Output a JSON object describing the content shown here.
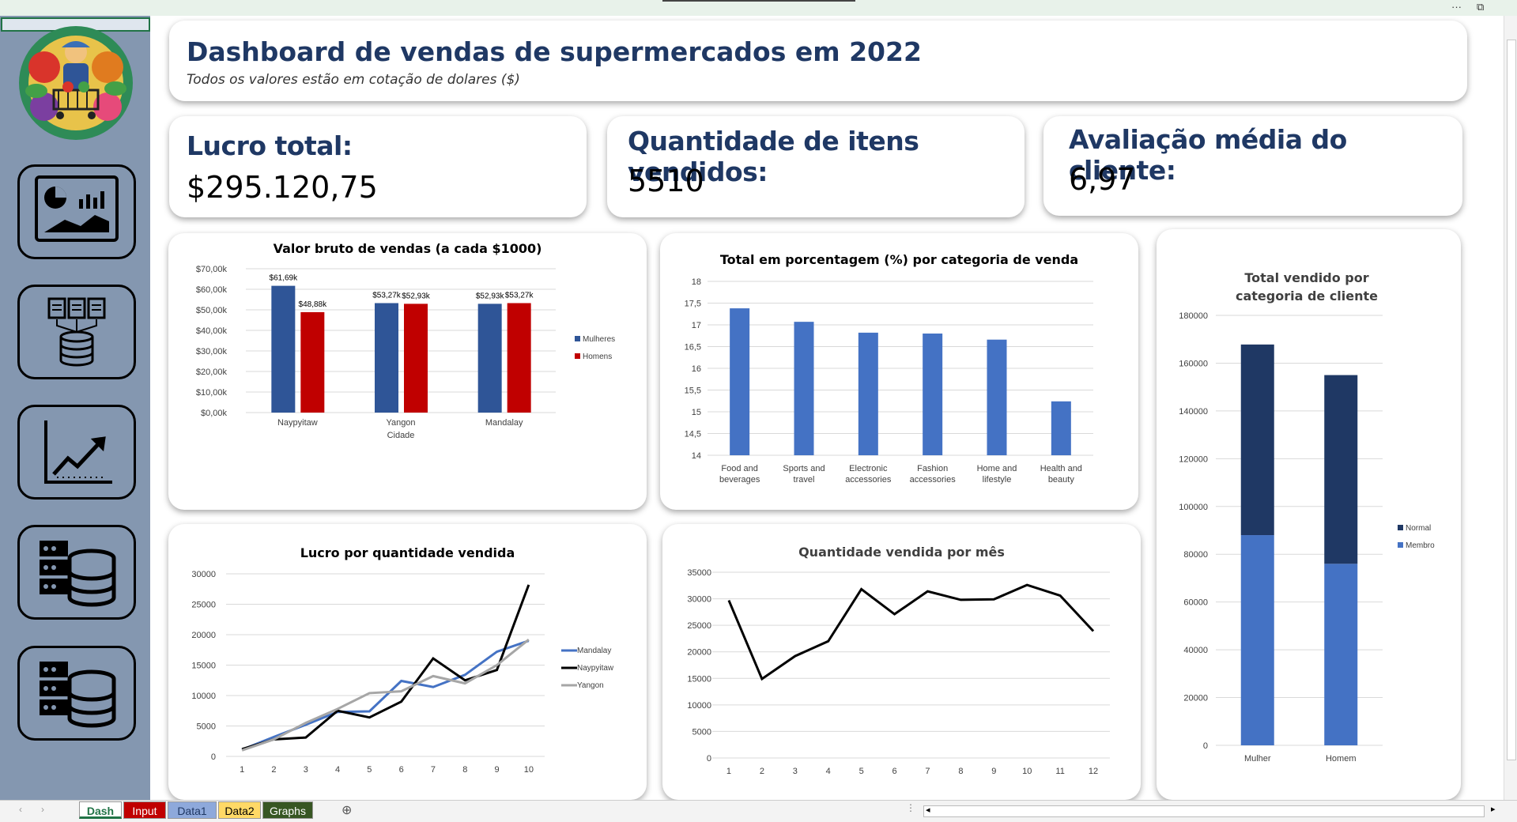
{
  "header": {
    "title": "Dashboard de vendas de supermercados em 2022",
    "subtitle": "Todos os valores estão em cotação de dolares ($)"
  },
  "kpis": {
    "profit": {
      "label": "Lucro total:",
      "value": "$295.120,75"
    },
    "quantity": {
      "label": "Quantidade de itens vendidos:",
      "value": "5510"
    },
    "rating": {
      "label": "Avaliação média do cliente:",
      "value": "6,97"
    }
  },
  "window": {
    "more": "···",
    "restore": "⧉"
  },
  "nav": {
    "icons": [
      "dashboard-icon",
      "data-input-icon",
      "growth-chart-icon",
      "database-icon",
      "database-icon"
    ]
  },
  "tabs": [
    {
      "label": "Dash",
      "color": "#ffffff",
      "text": "#217346"
    },
    {
      "label": "Input",
      "color": "#c00000",
      "text": "#ffffff"
    },
    {
      "label": "Data1",
      "color": "#8ea9db",
      "text": "#1f3864"
    },
    {
      "label": "Data2",
      "color": "#ffd966",
      "text": "#000000"
    },
    {
      "label": "Graphs",
      "color": "#375623",
      "text": "#ffffff"
    }
  ],
  "colors": {
    "navy": "#1f3864",
    "blue": "#2f5597",
    "red": "#c00000",
    "lightblue": "#4472c4"
  },
  "chart_data": [
    {
      "id": "gross",
      "type": "bar",
      "title": "Valor bruto de vendas (a cada $1000)",
      "xlabel": "Cidade",
      "categories": [
        "Naypyitaw",
        "Yangon",
        "Mandalay"
      ],
      "series": [
        {
          "name": "Mulheres",
          "values": [
            61.69,
            53.27,
            52.93
          ],
          "labels": [
            "$61,69k",
            "$53,27k",
            "$52,93k"
          ]
        },
        {
          "name": "Homens",
          "values": [
            48.88,
            52.93,
            53.27
          ],
          "labels": [
            "$48,88k",
            "$52,93k",
            "$53,27k"
          ]
        }
      ],
      "yticks": [
        "$0,00k",
        "$10,00k",
        "$20,00k",
        "$30,00k",
        "$40,00k",
        "$50,00k",
        "$60,00k",
        "$70,00k"
      ],
      "ylim": [
        0,
        70
      ],
      "grid": true,
      "legend": "right"
    },
    {
      "id": "category",
      "type": "bar",
      "title": "Total em porcentagem (%) por categoria de venda",
      "categories": [
        "Food and beverages",
        "Sports and travel",
        "Electronic accessories",
        "Fashion accessories",
        "Home and lifestyle",
        "Health and beauty"
      ],
      "values": [
        17.38,
        17.07,
        16.82,
        16.8,
        16.66,
        15.24
      ],
      "yticks": [
        "14",
        "14,5",
        "15",
        "15,5",
        "16",
        "16,5",
        "17",
        "17,5",
        "18"
      ],
      "ylim": [
        14,
        18
      ],
      "grid": true
    },
    {
      "id": "customer",
      "type": "bar",
      "title": "Total vendido por categoria de cliente",
      "categories": [
        "Mulher",
        "Homem"
      ],
      "series": [
        {
          "name": "Membro",
          "values": [
            88000,
            76000
          ]
        },
        {
          "name": "Normal",
          "values": [
            79800,
            79000
          ]
        }
      ],
      "stacked": true,
      "yticks": [
        "0",
        "20000",
        "40000",
        "60000",
        "80000",
        "100000",
        "120000",
        "140000",
        "160000",
        "180000"
      ],
      "ylim": [
        0,
        180000
      ],
      "grid": true,
      "legend": "right"
    },
    {
      "id": "profitqty",
      "type": "line",
      "title": "Lucro por quantidade vendida",
      "x": [
        "1",
        "2",
        "3",
        "4",
        "5",
        "6",
        "7",
        "8",
        "9",
        "10"
      ],
      "series": [
        {
          "name": "Mandalay",
          "values": [
            1100,
            3200,
            5200,
            7300,
            7400,
            12400,
            11400,
            13400,
            17200,
            19000
          ]
        },
        {
          "name": "Naypyitaw",
          "values": [
            1200,
            2800,
            3100,
            7500,
            6400,
            9000,
            16100,
            12500,
            14200,
            28200
          ]
        },
        {
          "name": "Yangon",
          "values": [
            1000,
            2800,
            5500,
            7800,
            10400,
            10700,
            13200,
            12000,
            15000,
            19200
          ]
        }
      ],
      "yticks": [
        "0",
        "5000",
        "10000",
        "15000",
        "20000",
        "25000",
        "30000"
      ],
      "ylim": [
        0,
        30000
      ],
      "grid": true,
      "legend": "right"
    },
    {
      "id": "monthly",
      "type": "line",
      "title": "Quantidade vendida por mês",
      "x": [
        "1",
        "2",
        "3",
        "4",
        "5",
        "6",
        "7",
        "8",
        "9",
        "10",
        "11",
        "12"
      ],
      "series": [
        {
          "values": [
            29700,
            14900,
            19200,
            22000,
            31800,
            27100,
            31400,
            29800,
            29900,
            32600,
            30600,
            23900
          ]
        }
      ],
      "yticks": [
        "0",
        "5000",
        "10000",
        "15000",
        "20000",
        "25000",
        "30000",
        "35000"
      ],
      "ylim": [
        0,
        35000
      ],
      "grid": true
    }
  ]
}
